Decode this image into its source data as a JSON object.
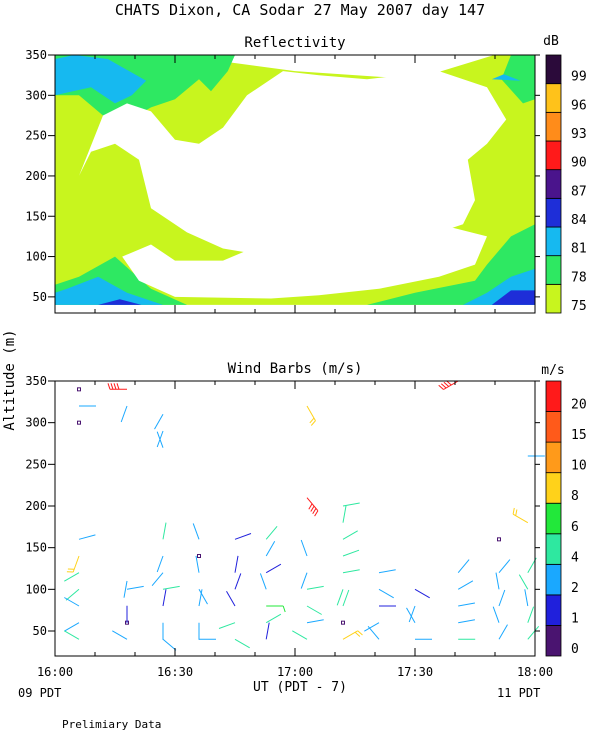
{
  "title": "CHATS Dixon, CA  Sodar  27 May 2007  day 147",
  "ylabel": "Altitude (m)",
  "xlabel": "UT  (PDT - 7)",
  "x_left_note": "09 PDT",
  "x_right_note": "11 PDT",
  "footnote": "Prelimiary Data",
  "chart_data": [
    {
      "type": "heatmap",
      "title": "Reflectivity",
      "unit": "dB",
      "x": [
        "16:00",
        "16:30",
        "17:00",
        "17:30",
        "18:00"
      ],
      "ylim": [
        30,
        350
      ],
      "yticks": [
        50,
        100,
        150,
        200,
        250,
        300,
        350
      ],
      "colorbar": {
        "labels": [
          "75",
          "78",
          "81",
          "84",
          "87",
          "90",
          "93",
          "96",
          "99"
        ],
        "levels": [
          75,
          78,
          81,
          84,
          87,
          90,
          93,
          96,
          99
        ],
        "colors": [
          "#c8f51e",
          "#2ee862",
          "#16b9f0",
          "#1e2ed8",
          "#4a148c",
          "#ff1a1a",
          "#ff8c1a",
          "#ffc21a",
          "#2b0a3a"
        ]
      },
      "regions": [
        {
          "level": 75,
          "points": [
            [
              16.0,
              40
            ],
            [
              18.0,
              40
            ],
            [
              18.0,
              350
            ],
            [
              17.83,
              350
            ],
            [
              17.5,
              320
            ],
            [
              17.0,
              330
            ],
            [
              16.5,
              350
            ],
            [
              16.0,
              350
            ]
          ]
        },
        {
          "level": 78,
          "points": [
            [
              16.0,
              40
            ],
            [
              16.55,
              40
            ],
            [
              16.4,
              60
            ],
            [
              16.25,
              100
            ],
            [
              16.1,
              75
            ],
            [
              16.0,
              65
            ]
          ]
        },
        {
          "level": 78,
          "points": [
            [
              16.8,
              40
            ],
            [
              17.3,
              40
            ],
            [
              17.5,
              55
            ],
            [
              17.75,
              70
            ],
            [
              17.8,
              90
            ],
            [
              17.9,
              125
            ],
            [
              18.0,
              140
            ],
            [
              18.0,
              40
            ]
          ]
        },
        {
          "level": 78,
          "points": [
            [
              16.0,
              300
            ],
            [
              16.0,
              350
            ],
            [
              16.75,
              350
            ],
            [
              16.72,
              330
            ],
            [
              16.65,
              305
            ],
            [
              16.6,
              320
            ],
            [
              16.5,
              295
            ],
            [
              16.4,
              285
            ],
            [
              16.3,
              268
            ],
            [
              16.2,
              275
            ],
            [
              16.1,
              300
            ]
          ]
        },
        {
          "level": 78,
          "points": [
            [
              17.9,
              350
            ],
            [
              17.86,
              320
            ],
            [
              17.95,
              290
            ],
            [
              18.0,
              295
            ],
            [
              18.0,
              350
            ]
          ]
        },
        {
          "level": 81,
          "points": [
            [
              16.0,
              40
            ],
            [
              16.45,
              40
            ],
            [
              16.3,
              55
            ],
            [
              16.18,
              75
            ],
            [
              16.05,
              60
            ],
            [
              16.0,
              55
            ]
          ]
        },
        {
          "level": 81,
          "points": [
            [
              17.7,
              40
            ],
            [
              18.0,
              40
            ],
            [
              18.0,
              85
            ],
            [
              17.9,
              75
            ],
            [
              17.8,
              55
            ]
          ]
        },
        {
          "level": 81,
          "points": [
            [
              16.0,
              300
            ],
            [
              16.0,
              345
            ],
            [
              16.08,
              350
            ],
            [
              16.22,
              345
            ],
            [
              16.38,
              318
            ],
            [
              16.32,
              300
            ],
            [
              16.25,
              290
            ],
            [
              16.15,
              310
            ]
          ]
        },
        {
          "level": 81,
          "points": [
            [
              17.82,
              320
            ],
            [
              17.94,
              318
            ],
            [
              17.87,
              326
            ]
          ]
        },
        {
          "level": 84,
          "points": [
            [
              17.82,
              40
            ],
            [
              18.0,
              40
            ],
            [
              18.0,
              58
            ],
            [
              17.9,
              58
            ]
          ]
        },
        {
          "level": 84,
          "points": [
            [
              16.18,
              40
            ],
            [
              16.36,
              40
            ],
            [
              16.27,
              47
            ]
          ]
        }
      ],
      "holes": [
        [
          [
            16.1,
            200
          ],
          [
            16.15,
            230
          ],
          [
            16.25,
            240
          ],
          [
            16.35,
            220
          ],
          [
            16.4,
            160
          ],
          [
            16.55,
            130
          ],
          [
            16.7,
            110
          ],
          [
            16.9,
            100
          ],
          [
            17.1,
            110
          ],
          [
            17.3,
            120
          ],
          [
            17.5,
            110
          ],
          [
            17.6,
            130
          ],
          [
            17.7,
            140
          ],
          [
            17.75,
            170
          ],
          [
            17.72,
            220
          ],
          [
            17.8,
            240
          ],
          [
            17.88,
            270
          ],
          [
            17.8,
            310
          ],
          [
            17.6,
            330
          ],
          [
            17.3,
            320
          ],
          [
            17.1,
            325
          ],
          [
            16.95,
            330
          ],
          [
            16.8,
            300
          ],
          [
            16.7,
            260
          ],
          [
            16.6,
            240
          ],
          [
            16.5,
            245
          ],
          [
            16.4,
            280
          ],
          [
            16.3,
            290
          ],
          [
            16.2,
            275
          ]
        ],
        [
          [
            16.28,
            100
          ],
          [
            16.35,
            70
          ],
          [
            16.5,
            50
          ],
          [
            16.9,
            48
          ],
          [
            17.1,
            52
          ],
          [
            17.35,
            60
          ],
          [
            17.6,
            75
          ],
          [
            17.75,
            90
          ],
          [
            17.8,
            125
          ],
          [
            17.6,
            140
          ],
          [
            17.3,
            140
          ],
          [
            17.0,
            150
          ],
          [
            16.9,
            120
          ],
          [
            16.7,
            95
          ],
          [
            16.5,
            95
          ],
          [
            16.4,
            115
          ]
        ]
      ]
    },
    {
      "type": "scatter",
      "title": "Wind Barbs (m/s)",
      "unit": "m/s",
      "x": [
        "16:00",
        "16:30",
        "17:00",
        "17:30",
        "18:00"
      ],
      "ylim": [
        20,
        350
      ],
      "yticks": [
        50,
        100,
        150,
        200,
        250,
        300,
        350
      ],
      "colorbar": {
        "labels": [
          "0",
          "1",
          "2",
          "4",
          "6",
          "8",
          "10",
          "15",
          "20"
        ],
        "levels": [
          0,
          1,
          2,
          4,
          6,
          8,
          10,
          15,
          20
        ],
        "colors": [
          "#4a1470",
          "#2020dc",
          "#1aa8ff",
          "#2ee8a0",
          "#22e83a",
          "#ffd21a",
          "#ff9a1a",
          "#ff5a1a",
          "#ff1a1a"
        ]
      },
      "barbs": [
        {
          "t": 16.1,
          "alt": 340,
          "spd": 0
        },
        {
          "t": 16.1,
          "alt": 320,
          "spd": 3,
          "dir": 90
        },
        {
          "t": 16.1,
          "alt": 300,
          "spd": 0
        },
        {
          "t": 16.1,
          "alt": 160,
          "spd": 3,
          "dir": 75
        },
        {
          "t": 16.1,
          "alt": 140,
          "spd": 8,
          "dir": 200
        },
        {
          "t": 16.1,
          "alt": 120,
          "spd": 5,
          "dir": 240
        },
        {
          "t": 16.1,
          "alt": 100,
          "spd": 4,
          "dir": 230
        },
        {
          "t": 16.1,
          "alt": 80,
          "spd": 3,
          "dir": 300
        },
        {
          "t": 16.1,
          "alt": 60,
          "spd": 3,
          "dir": 240
        },
        {
          "t": 16.1,
          "alt": 40,
          "spd": 4,
          "dir": 300
        },
        {
          "t": 16.3,
          "alt": 340,
          "spd": 22,
          "dir": 270
        },
        {
          "t": 16.3,
          "alt": 320,
          "spd": 2,
          "dir": 200
        },
        {
          "t": 16.3,
          "alt": 110,
          "spd": 3,
          "dir": 190
        },
        {
          "t": 16.3,
          "alt": 100,
          "spd": 3,
          "dir": 80
        },
        {
          "t": 16.3,
          "alt": 80,
          "spd": 3,
          "dir": 180
        },
        {
          "t": 16.3,
          "alt": 60,
          "spd": 0
        },
        {
          "t": 16.3,
          "alt": 60,
          "spd": 1,
          "dir": 0
        },
        {
          "t": 16.3,
          "alt": 40,
          "spd": 3,
          "dir": 300
        },
        {
          "t": 16.45,
          "alt": 310,
          "spd": 3,
          "dir": 210
        },
        {
          "t": 16.45,
          "alt": 290,
          "spd": 3,
          "dir": 200
        },
        {
          "t": 16.45,
          "alt": 270,
          "spd": 3,
          "dir": 340
        },
        {
          "t": 16.45,
          "alt": 160,
          "spd": 5,
          "dir": 10
        },
        {
          "t": 16.45,
          "alt": 140,
          "spd": 2,
          "dir": 200
        },
        {
          "t": 16.45,
          "alt": 120,
          "spd": 3,
          "dir": 220
        },
        {
          "t": 16.45,
          "alt": 100,
          "spd": 4,
          "dir": 80
        },
        {
          "t": 16.45,
          "alt": 80,
          "spd": 1,
          "dir": 10
        },
        {
          "t": 16.45,
          "alt": 60,
          "spd": 3,
          "dir": 180
        },
        {
          "t": 16.45,
          "alt": 40,
          "spd": 3,
          "dir": 130
        },
        {
          "t": 16.6,
          "alt": 160,
          "spd": 3,
          "dir": 340
        },
        {
          "t": 16.6,
          "alt": 140,
          "spd": 0
        },
        {
          "t": 16.6,
          "alt": 120,
          "spd": 3,
          "dir": 350
        },
        {
          "t": 16.6,
          "alt": 100,
          "spd": 3,
          "dir": 150
        },
        {
          "t": 16.6,
          "alt": 80,
          "spd": 3,
          "dir": 10
        },
        {
          "t": 16.6,
          "alt": 60,
          "spd": 3,
          "dir": 180
        },
        {
          "t": 16.6,
          "alt": 40,
          "spd": 3,
          "dir": 90
        },
        {
          "t": 16.75,
          "alt": 160,
          "spd": 1,
          "dir": 70
        },
        {
          "t": 16.75,
          "alt": 120,
          "spd": 1,
          "dir": 10
        },
        {
          "t": 16.75,
          "alt": 100,
          "spd": 1,
          "dir": 20
        },
        {
          "t": 16.75,
          "alt": 80,
          "spd": 1,
          "dir": 330
        },
        {
          "t": 16.75,
          "alt": 60,
          "spd": 4,
          "dir": 250
        },
        {
          "t": 16.75,
          "alt": 40,
          "spd": 4,
          "dir": 120
        },
        {
          "t": 16.88,
          "alt": 160,
          "spd": 5,
          "dir": 40
        },
        {
          "t": 16.88,
          "alt": 140,
          "spd": 3,
          "dir": 30
        },
        {
          "t": 16.88,
          "alt": 120,
          "spd": 1,
          "dir": 60
        },
        {
          "t": 16.88,
          "alt": 100,
          "spd": 3,
          "dir": 340
        },
        {
          "t": 16.88,
          "alt": 80,
          "spd": 6,
          "dir": 90
        },
        {
          "t": 16.88,
          "alt": 60,
          "spd": 4,
          "dir": 60
        },
        {
          "t": 16.88,
          "alt": 40,
          "spd": 1,
          "dir": 10
        },
        {
          "t": 17.05,
          "alt": 320,
          "spd": 8,
          "dir": 150
        },
        {
          "t": 17.05,
          "alt": 210,
          "spd": 20,
          "dir": 140
        },
        {
          "t": 17.05,
          "alt": 140,
          "spd": 3,
          "dir": 340
        },
        {
          "t": 17.05,
          "alt": 120,
          "spd": 3,
          "dir": 200
        },
        {
          "t": 17.05,
          "alt": 100,
          "spd": 5,
          "dir": 80
        },
        {
          "t": 17.05,
          "alt": 80,
          "spd": 4,
          "dir": 120
        },
        {
          "t": 17.05,
          "alt": 60,
          "spd": 3,
          "dir": 80
        },
        {
          "t": 17.05,
          "alt": 40,
          "spd": 5,
          "dir": 300
        },
        {
          "t": 17.2,
          "alt": 200,
          "spd": 5,
          "dir": 80
        },
        {
          "t": 17.2,
          "alt": 180,
          "spd": 5,
          "dir": 10
        },
        {
          "t": 17.2,
          "alt": 160,
          "spd": 4,
          "dir": 60
        },
        {
          "t": 17.2,
          "alt": 140,
          "spd": 4,
          "dir": 70
        },
        {
          "t": 17.2,
          "alt": 120,
          "spd": 4,
          "dir": 80
        },
        {
          "t": 17.2,
          "alt": 100,
          "spd": 5,
          "dir": 200
        },
        {
          "t": 17.2,
          "alt": 80,
          "spd": 5,
          "dir": 20
        },
        {
          "t": 17.2,
          "alt": 60,
          "spd": 0
        },
        {
          "t": 17.2,
          "alt": 40,
          "spd": 8,
          "dir": 60
        },
        {
          "t": 17.35,
          "alt": 120,
          "spd": 3,
          "dir": 80
        },
        {
          "t": 17.35,
          "alt": 100,
          "spd": 3,
          "dir": 120
        },
        {
          "t": 17.35,
          "alt": 80,
          "spd": 1,
          "dir": 90
        },
        {
          "t": 17.35,
          "alt": 60,
          "spd": 3,
          "dir": 240
        },
        {
          "t": 17.35,
          "alt": 40,
          "spd": 3,
          "dir": 320
        },
        {
          "t": 17.5,
          "alt": 100,
          "spd": 1,
          "dir": 120
        },
        {
          "t": 17.5,
          "alt": 80,
          "spd": 3,
          "dir": 200
        },
        {
          "t": 17.5,
          "alt": 60,
          "spd": 3,
          "dir": 330
        },
        {
          "t": 17.5,
          "alt": 40,
          "spd": 3,
          "dir": 90
        },
        {
          "t": 17.68,
          "alt": 350,
          "spd": 20,
          "dir": 240
        },
        {
          "t": 17.68,
          "alt": 120,
          "spd": 3,
          "dir": 40
        },
        {
          "t": 17.68,
          "alt": 100,
          "spd": 3,
          "dir": 60
        },
        {
          "t": 17.68,
          "alt": 80,
          "spd": 3,
          "dir": 80
        },
        {
          "t": 17.68,
          "alt": 60,
          "spd": 3,
          "dir": 80
        },
        {
          "t": 17.68,
          "alt": 40,
          "spd": 5,
          "dir": 90
        },
        {
          "t": 17.85,
          "alt": 160,
          "spd": 0
        },
        {
          "t": 17.85,
          "alt": 120,
          "spd": 3,
          "dir": 40
        },
        {
          "t": 17.85,
          "alt": 100,
          "spd": 3,
          "dir": 350
        },
        {
          "t": 17.85,
          "alt": 80,
          "spd": 3,
          "dir": 20
        },
        {
          "t": 17.85,
          "alt": 60,
          "spd": 3,
          "dir": 340
        },
        {
          "t": 17.85,
          "alt": 40,
          "spd": 3,
          "dir": 30
        },
        {
          "t": 17.97,
          "alt": 260,
          "spd": 3,
          "dir": 90
        },
        {
          "t": 17.97,
          "alt": 180,
          "spd": 8,
          "dir": 300
        },
        {
          "t": 17.97,
          "alt": 120,
          "spd": 4,
          "dir": 30
        },
        {
          "t": 17.97,
          "alt": 100,
          "spd": 4,
          "dir": 330
        },
        {
          "t": 17.97,
          "alt": 80,
          "spd": 3,
          "dir": 350
        },
        {
          "t": 17.97,
          "alt": 60,
          "spd": 4,
          "dir": 20
        },
        {
          "t": 17.97,
          "alt": 40,
          "spd": 4,
          "dir": 40
        }
      ]
    }
  ]
}
